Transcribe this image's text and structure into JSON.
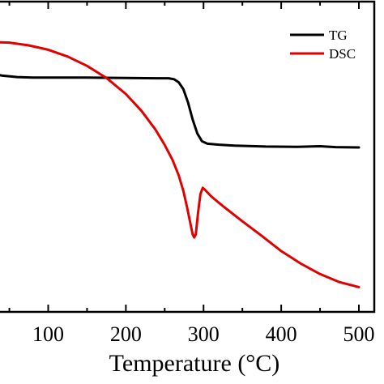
{
  "chart_data": {
    "type": "line",
    "xlabel": "Temperature (°C)",
    "xlim": [
      25,
      520
    ],
    "ylim": [
      0,
      100
    ],
    "x_ticks": [
      100,
      200,
      300,
      400,
      500
    ],
    "x_tick_labels": [
      "100",
      "200",
      "300",
      "400",
      "500"
    ],
    "y_ticks_shown": false,
    "grid": false,
    "legend_position": "top-right",
    "series": [
      {
        "name": "TG",
        "color": "#000000",
        "points": [
          [
            25,
            76.9
          ],
          [
            40,
            76.2
          ],
          [
            60,
            75.7
          ],
          [
            80,
            75.5
          ],
          [
            100,
            75.5
          ],
          [
            150,
            75.5
          ],
          [
            200,
            75.4
          ],
          [
            240,
            75.3
          ],
          [
            255,
            75.3
          ],
          [
            262,
            75.0
          ],
          [
            268,
            74.0
          ],
          [
            274,
            71.8
          ],
          [
            280,
            67.5
          ],
          [
            286,
            62.0
          ],
          [
            292,
            57.5
          ],
          [
            298,
            55.0
          ],
          [
            305,
            54.2
          ],
          [
            320,
            53.9
          ],
          [
            340,
            53.6
          ],
          [
            380,
            53.3
          ],
          [
            420,
            53.2
          ],
          [
            450,
            53.4
          ],
          [
            470,
            53.1
          ],
          [
            500,
            53.0
          ]
        ]
      },
      {
        "name": "DSC",
        "color": "#e00000",
        "points": [
          [
            25,
            87.0
          ],
          [
            50,
            86.8
          ],
          [
            75,
            85.9
          ],
          [
            100,
            84.5
          ],
          [
            125,
            82.3
          ],
          [
            150,
            79.3
          ],
          [
            175,
            75.4
          ],
          [
            200,
            70.2
          ],
          [
            220,
            64.8
          ],
          [
            238,
            58.8
          ],
          [
            250,
            53.8
          ],
          [
            260,
            49.0
          ],
          [
            268,
            44.0
          ],
          [
            274,
            39.0
          ],
          [
            279,
            33.5
          ],
          [
            283,
            28.5
          ],
          [
            286,
            25.0
          ],
          [
            288,
            24.0
          ],
          [
            290,
            25.0
          ],
          [
            293,
            32.0
          ],
          [
            296,
            38.0
          ],
          [
            299,
            40.0
          ],
          [
            302,
            39.3
          ],
          [
            310,
            37.2
          ],
          [
            325,
            34.1
          ],
          [
            350,
            29.2
          ],
          [
            375,
            24.5
          ],
          [
            400,
            19.6
          ],
          [
            425,
            15.6
          ],
          [
            450,
            12.2
          ],
          [
            475,
            9.6
          ],
          [
            500,
            8.0
          ]
        ]
      }
    ]
  }
}
